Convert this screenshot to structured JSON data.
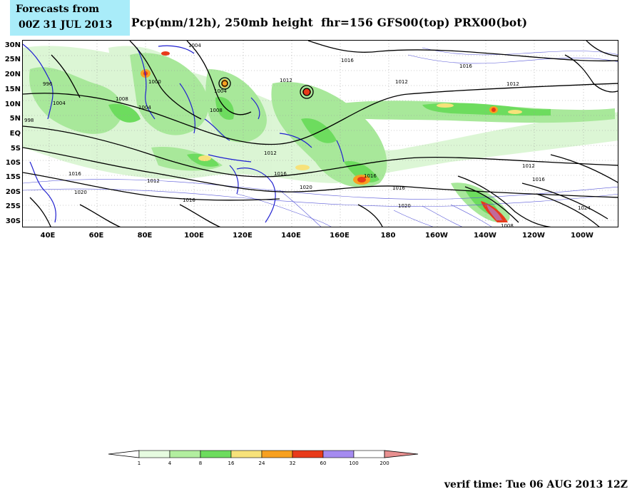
{
  "header": {
    "forecast_line1": "Forecasts from",
    "forecast_line2": "00Z 31 JUL 2013",
    "title": "Pcp(mm/12h), 250mb height  fhr=156 GFS00(top) PRX00(bot)"
  },
  "map": {
    "lat_labels": [
      "30N",
      "25N",
      "20N",
      "15N",
      "10N",
      "5N",
      "EQ",
      "5S",
      "10S",
      "15S",
      "20S",
      "25S",
      "30S"
    ],
    "lon_labels": [
      "40E",
      "60E",
      "80E",
      "100E",
      "120E",
      "140E",
      "160E",
      "180",
      "160W",
      "140W",
      "120W",
      "100W"
    ],
    "isobar_labels": [
      "1004",
      "1008",
      "1012",
      "1016",
      "1020",
      "1024",
      "996",
      "1000"
    ],
    "colors": {
      "light_green": "#d8f5d0",
      "mid_green": "#a8e89a",
      "green": "#6ddc5e",
      "yellow": "#f7e27a",
      "orange": "#f7a020",
      "red": "#e83a1a",
      "purple": "#a58bf0",
      "pink": "#e89090",
      "coast_blue": "#2020d0",
      "contour_black": "#000000"
    }
  },
  "colorbar": {
    "ticks": [
      "1",
      "4",
      "8",
      "16",
      "24",
      "32",
      "60",
      "100",
      "200"
    ],
    "colors": [
      "#ffffff",
      "#e6fbe0",
      "#b2ee9f",
      "#6ddc5e",
      "#f7e27a",
      "#f7a020",
      "#e83a1a",
      "#a58bf0",
      "#ffffff",
      "#e89090"
    ]
  },
  "footer": {
    "verif_time": "verif time: Tue 06 AUG 2013 12Z"
  }
}
